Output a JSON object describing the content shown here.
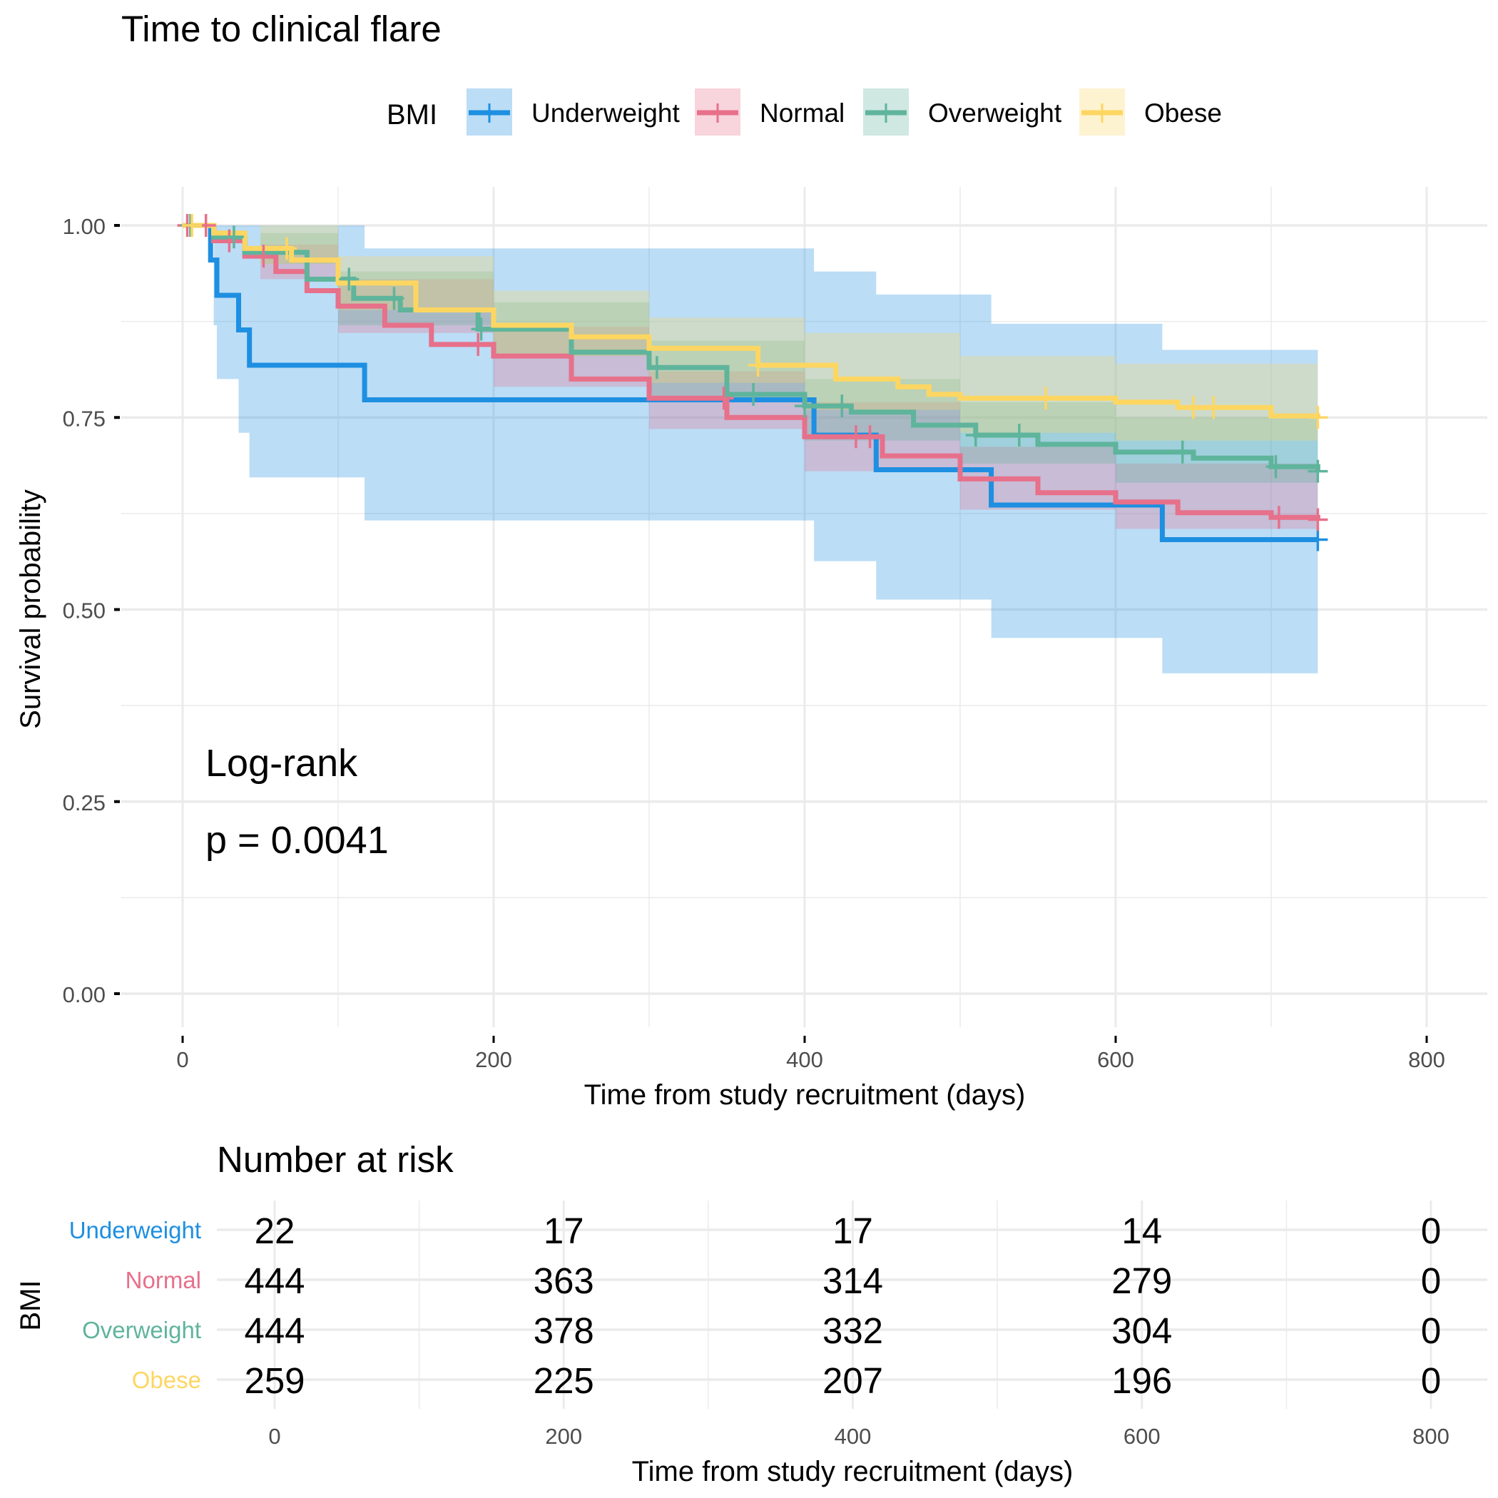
{
  "chart_data": {
    "type": "line",
    "subtype": "kaplan-meier",
    "title": "Time to clinical flare",
    "xlabel": "Time from study recruitment (days)",
    "ylabel": "Survival probability",
    "xlim": [
      -50,
      830
    ],
    "ylim": [
      -0.04,
      1.04
    ],
    "x_ticks": [
      0,
      200,
      400,
      600,
      800
    ],
    "y_ticks": [
      0.0,
      0.25,
      0.5,
      0.75,
      1.0
    ],
    "y_tick_labels": [
      "0.00",
      "0.25",
      "0.50",
      "0.75",
      "1.00"
    ],
    "grid": true,
    "legend": {
      "title": "BMI",
      "position": "top",
      "entries": [
        "Underweight",
        "Normal",
        "Overweight",
        "Obese"
      ]
    },
    "annotation": {
      "line1": "Log-rank",
      "line2": "p = 0.0041"
    },
    "series": [
      {
        "name": "Underweight",
        "color": "#1E8FE1",
        "steps": [
          [
            0,
            1.0
          ],
          [
            18,
            0.955
          ],
          [
            22,
            0.909
          ],
          [
            36,
            0.864
          ],
          [
            43,
            0.818
          ],
          [
            117,
            0.773
          ],
          [
            406,
            0.727
          ],
          [
            446,
            0.682
          ],
          [
            520,
            0.636
          ],
          [
            630,
            0.591
          ],
          [
            730,
            0.591
          ]
        ],
        "ci_upper": [
          [
            0,
            1.0
          ],
          [
            20,
            1.0
          ],
          [
            117,
            1.0
          ],
          [
            117,
            0.97
          ],
          [
            406,
            0.97
          ],
          [
            406,
            0.94
          ],
          [
            446,
            0.94
          ],
          [
            446,
            0.91
          ],
          [
            520,
            0.91
          ],
          [
            520,
            0.872
          ],
          [
            630,
            0.872
          ],
          [
            630,
            0.838
          ],
          [
            730,
            0.838
          ]
        ],
        "ci_lower": [
          [
            0,
            1.0
          ],
          [
            20,
            0.87
          ],
          [
            22,
            0.8
          ],
          [
            36,
            0.73
          ],
          [
            43,
            0.672
          ],
          [
            117,
            0.672
          ],
          [
            117,
            0.616
          ],
          [
            406,
            0.616
          ],
          [
            406,
            0.563
          ],
          [
            446,
            0.563
          ],
          [
            446,
            0.513
          ],
          [
            520,
            0.513
          ],
          [
            520,
            0.463
          ],
          [
            630,
            0.463
          ],
          [
            630,
            0.417
          ],
          [
            730,
            0.417
          ]
        ],
        "censor_x": [
          730
        ]
      },
      {
        "name": "Normal",
        "color": "#E7708A",
        "steps": [
          [
            0,
            1.0
          ],
          [
            20,
            0.98
          ],
          [
            40,
            0.96
          ],
          [
            60,
            0.94
          ],
          [
            80,
            0.915
          ],
          [
            100,
            0.895
          ],
          [
            130,
            0.87
          ],
          [
            160,
            0.845
          ],
          [
            200,
            0.83
          ],
          [
            250,
            0.8
          ],
          [
            300,
            0.775
          ],
          [
            350,
            0.75
          ],
          [
            400,
            0.725
          ],
          [
            450,
            0.7
          ],
          [
            500,
            0.67
          ],
          [
            550,
            0.652
          ],
          [
            600,
            0.64
          ],
          [
            640,
            0.626
          ],
          [
            700,
            0.62
          ],
          [
            730,
            0.617
          ]
        ],
        "ci_upper": [
          [
            0,
            1.0
          ],
          [
            50,
            0.975
          ],
          [
            100,
            0.93
          ],
          [
            200,
            0.868
          ],
          [
            300,
            0.81
          ],
          [
            400,
            0.77
          ],
          [
            500,
            0.712
          ],
          [
            600,
            0.69
          ],
          [
            730,
            0.66
          ]
        ],
        "ci_lower": [
          [
            0,
            1.0
          ],
          [
            50,
            0.93
          ],
          [
            100,
            0.86
          ],
          [
            200,
            0.79
          ],
          [
            300,
            0.735
          ],
          [
            400,
            0.68
          ],
          [
            500,
            0.63
          ],
          [
            600,
            0.605
          ],
          [
            730,
            0.575
          ]
        ],
        "censor_x": [
          3,
          15,
          30,
          52,
          190,
          348,
          433,
          442,
          705,
          730
        ]
      },
      {
        "name": "Overweight",
        "color": "#5FB49C",
        "steps": [
          [
            0,
            1.0
          ],
          [
            20,
            0.985
          ],
          [
            40,
            0.965
          ],
          [
            80,
            0.93
          ],
          [
            110,
            0.905
          ],
          [
            140,
            0.89
          ],
          [
            190,
            0.865
          ],
          [
            250,
            0.835
          ],
          [
            300,
            0.815
          ],
          [
            350,
            0.78
          ],
          [
            400,
            0.765
          ],
          [
            430,
            0.757
          ],
          [
            470,
            0.74
          ],
          [
            510,
            0.727
          ],
          [
            550,
            0.715
          ],
          [
            600,
            0.705
          ],
          [
            650,
            0.697
          ],
          [
            700,
            0.686
          ],
          [
            730,
            0.68
          ]
        ],
        "ci_upper": [
          [
            0,
            1.0
          ],
          [
            50,
            0.99
          ],
          [
            100,
            0.94
          ],
          [
            200,
            0.9
          ],
          [
            300,
            0.85
          ],
          [
            400,
            0.8
          ],
          [
            500,
            0.77
          ],
          [
            600,
            0.75
          ],
          [
            730,
            0.73
          ]
        ],
        "ci_lower": [
          [
            0,
            1.0
          ],
          [
            50,
            0.95
          ],
          [
            100,
            0.87
          ],
          [
            200,
            0.83
          ],
          [
            300,
            0.77
          ],
          [
            400,
            0.72
          ],
          [
            500,
            0.69
          ],
          [
            600,
            0.665
          ],
          [
            730,
            0.635
          ]
        ],
        "censor_x": [
          5,
          33,
          107,
          136,
          192,
          305,
          367,
          400,
          424,
          510,
          538,
          643,
          703,
          730
        ]
      },
      {
        "name": "Obese",
        "color": "#FDD662",
        "steps": [
          [
            0,
            1.0
          ],
          [
            20,
            0.99
          ],
          [
            40,
            0.97
          ],
          [
            70,
            0.955
          ],
          [
            100,
            0.925
          ],
          [
            150,
            0.89
          ],
          [
            200,
            0.87
          ],
          [
            250,
            0.855
          ],
          [
            300,
            0.84
          ],
          [
            370,
            0.818
          ],
          [
            420,
            0.8
          ],
          [
            460,
            0.79
          ],
          [
            480,
            0.78
          ],
          [
            500,
            0.775
          ],
          [
            550,
            0.775
          ],
          [
            600,
            0.77
          ],
          [
            640,
            0.763
          ],
          [
            700,
            0.752
          ],
          [
            730,
            0.75
          ]
        ],
        "ci_upper": [
          [
            0,
            1.0
          ],
          [
            50,
            1.0
          ],
          [
            100,
            0.96
          ],
          [
            200,
            0.915
          ],
          [
            300,
            0.88
          ],
          [
            400,
            0.86
          ],
          [
            500,
            0.83
          ],
          [
            600,
            0.82
          ],
          [
            730,
            0.805
          ]
        ],
        "ci_lower": [
          [
            0,
            1.0
          ],
          [
            50,
            0.95
          ],
          [
            100,
            0.89
          ],
          [
            200,
            0.83
          ],
          [
            300,
            0.795
          ],
          [
            400,
            0.76
          ],
          [
            500,
            0.73
          ],
          [
            600,
            0.72
          ],
          [
            730,
            0.7
          ]
        ],
        "censor_x": [
          6,
          67,
          370,
          555,
          650,
          663,
          730
        ]
      }
    ],
    "risk_table": {
      "title": "Number at risk",
      "ylabel": "BMI",
      "xlabel": "Time from study recruitment (days)",
      "times": [
        0,
        200,
        400,
        600,
        800
      ],
      "x_ticks": [
        "0",
        "200",
        "400",
        "600",
        "800"
      ],
      "rows": [
        {
          "group": "Underweight",
          "color": "#1E8FE1",
          "values": [
            22,
            17,
            17,
            14,
            0
          ]
        },
        {
          "group": "Normal",
          "color": "#E7708A",
          "values": [
            444,
            363,
            314,
            279,
            0
          ]
        },
        {
          "group": "Overweight",
          "color": "#5FB49C",
          "values": [
            444,
            378,
            332,
            304,
            0
          ]
        },
        {
          "group": "Obese",
          "color": "#FDD662",
          "values": [
            259,
            225,
            207,
            196,
            0
          ]
        }
      ]
    }
  }
}
